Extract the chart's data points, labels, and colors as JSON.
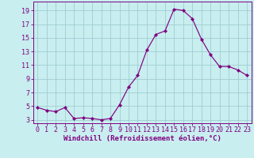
{
  "x": [
    0,
    1,
    2,
    3,
    4,
    5,
    6,
    7,
    8,
    9,
    10,
    11,
    12,
    13,
    14,
    15,
    16,
    17,
    18,
    19,
    20,
    21,
    22,
    23
  ],
  "y": [
    4.8,
    4.4,
    4.2,
    4.8,
    3.2,
    3.3,
    3.2,
    3.0,
    3.2,
    5.2,
    7.8,
    9.5,
    13.2,
    15.5,
    16.0,
    19.2,
    19.0,
    17.8,
    14.8,
    12.5,
    10.8,
    10.8,
    10.3,
    9.5
  ],
  "line_color": "#800080",
  "marker": "D",
  "marker_size": 2.2,
  "background_color": "#c8eef0",
  "grid_color": "#a0cdd0",
  "xlabel": "Windchill (Refroidissement éolien,°C)",
  "xtick_labels": [
    "0",
    "1",
    "2",
    "3",
    "4",
    "5",
    "6",
    "7",
    "8",
    "9",
    "10",
    "11",
    "12",
    "13",
    "14",
    "15",
    "16",
    "17",
    "18",
    "19",
    "20",
    "21",
    "22",
    "23"
  ],
  "ylabel_ticks": [
    3,
    5,
    7,
    9,
    11,
    13,
    15,
    17,
    19
  ],
  "xlim": [
    -0.5,
    23.5
  ],
  "ylim": [
    2.5,
    20.3
  ],
  "xlabel_fontsize": 6.5,
  "tick_fontsize": 6.0
}
